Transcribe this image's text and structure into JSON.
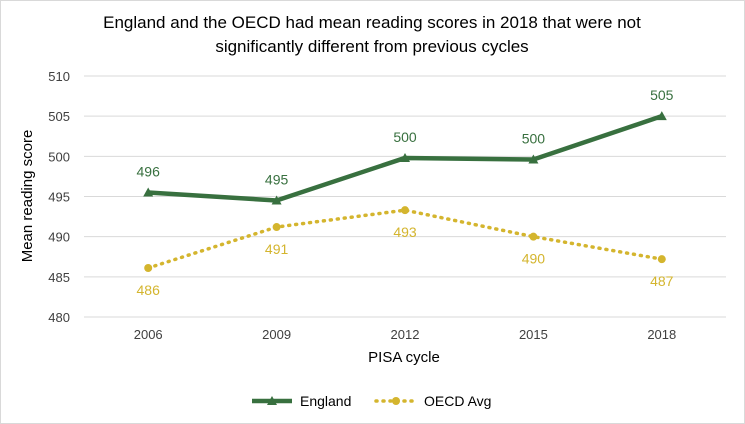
{
  "chart_data": {
    "type": "line",
    "title_line1": "England and the OECD had mean reading scores in 2018 that were not",
    "title_line2": "significantly different from previous cycles",
    "xlabel": "PISA cycle",
    "ylabel": "Mean reading score",
    "categories": [
      "2006",
      "2009",
      "2012",
      "2015",
      "2018"
    ],
    "ylim": [
      480,
      510
    ],
    "yticks": [
      "480",
      "485",
      "490",
      "495",
      "500",
      "505",
      "510"
    ],
    "grid": true,
    "legend": "bottom",
    "series": [
      {
        "name": "England",
        "values": [
          495.5,
          494.5,
          499.8,
          499.6,
          505.0
        ],
        "labels": [
          "496",
          "495",
          "500",
          "500",
          "505"
        ],
        "color": "#38703f",
        "marker": "triangle",
        "line_style": "solid",
        "label_position": "above"
      },
      {
        "name": "OECD Avg",
        "values": [
          486.1,
          491.2,
          493.3,
          490.0,
          487.2
        ],
        "labels": [
          "486",
          "491",
          "493",
          "490",
          "487"
        ],
        "color": "#d4b52e",
        "marker": "circle",
        "line_style": "dotted",
        "label_position": "below"
      }
    ]
  }
}
